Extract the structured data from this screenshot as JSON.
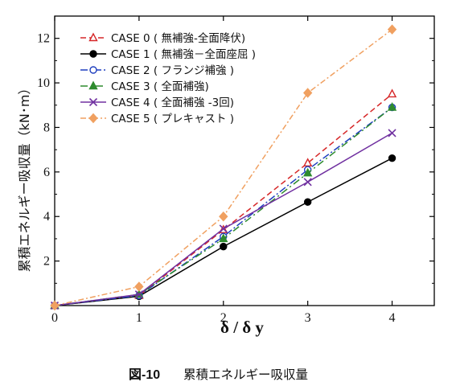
{
  "caption": {
    "number": "図-10",
    "title": "累積エネルギー吸収量"
  },
  "chart_data": {
    "type": "line",
    "xlabel": "δ / δ y",
    "ylabel": "累積エネルギー吸収量（kN･m）",
    "xlim": [
      0,
      4.5
    ],
    "ylim": [
      0,
      13
    ],
    "xticks": [
      0,
      1,
      2,
      3,
      4
    ],
    "yticks": [
      2,
      4,
      6,
      8,
      10,
      12
    ],
    "grid": false,
    "legend_position": "top-left",
    "x": [
      0,
      1,
      2,
      3,
      4
    ],
    "series": [
      {
        "name": "CASE 0 ( 無補強-全面降伏)",
        "values": [
          0,
          0.45,
          3.4,
          6.4,
          9.5
        ],
        "color": "#d62728",
        "dash": "7,4",
        "marker": "triangle-open"
      },
      {
        "name": "CASE 1 ( 無補強－全面座屈 )",
        "values": [
          0,
          0.42,
          2.65,
          4.65,
          6.62
        ],
        "color": "#000000",
        "dash": "",
        "marker": "circle-filled"
      },
      {
        "name": "CASE 2 ( フランジ補強 )",
        "values": [
          0,
          0.45,
          3.1,
          6.1,
          8.9
        ],
        "color": "#1f3fbf",
        "dash": "9,3,2,3",
        "marker": "circle-open"
      },
      {
        "name": "CASE 3 ( 全面補強)",
        "values": [
          0,
          0.5,
          3.0,
          5.95,
          8.9
        ],
        "color": "#2e8b2e",
        "dash": "9,4,2,4",
        "marker": "triangle-filled"
      },
      {
        "name": "CASE 4 ( 全面補強 -3回)",
        "values": [
          0,
          0.5,
          3.45,
          5.55,
          7.75
        ],
        "color": "#7030a0",
        "dash": "",
        "marker": "x"
      },
      {
        "name": "CASE 5 ( プレキャスト )",
        "values": [
          0,
          0.85,
          4.0,
          9.55,
          12.4
        ],
        "color": "#f0a060",
        "dash": "7,3,2,3",
        "marker": "diamond-filled"
      }
    ]
  }
}
